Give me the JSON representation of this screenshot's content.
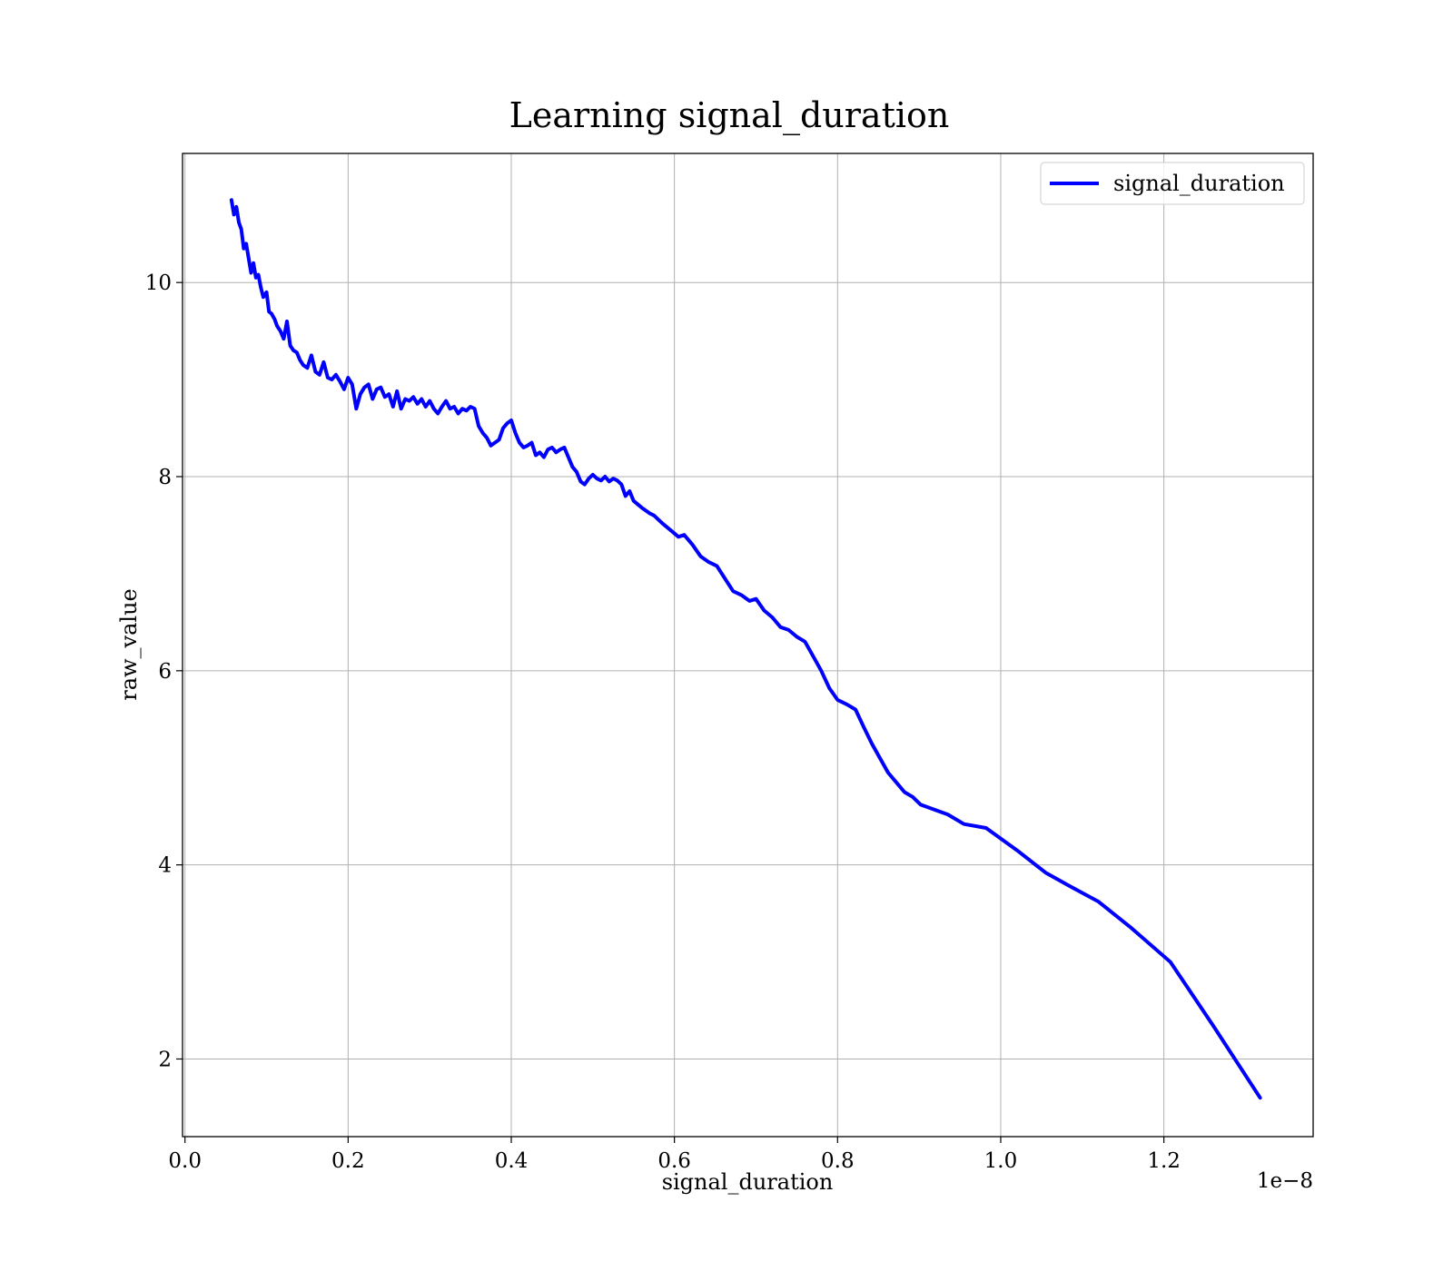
{
  "chart_data": {
    "type": "line",
    "title": "Learning signal_duration",
    "xlabel": "signal_duration",
    "ylabel": "raw_value",
    "x_offset_label": "1e−8",
    "x_scale_exponent": -8,
    "xlim": [
      -0.003,
      1.383
    ],
    "ylim": [
      1.2,
      11.33
    ],
    "xticks": [
      0.0,
      0.2,
      0.4,
      0.6,
      0.8,
      1.0,
      1.2
    ],
    "xtick_labels": [
      "0.0",
      "0.2",
      "0.4",
      "0.6",
      "0.8",
      "1.0",
      "1.2"
    ],
    "yticks": [
      2,
      4,
      6,
      8,
      10
    ],
    "ytick_labels": [
      "2",
      "4",
      "6",
      "8",
      "10"
    ],
    "grid": true,
    "legend_position": "top-right",
    "series": [
      {
        "name": "signal_duration",
        "color": "#0000ff",
        "x": [
          0.057,
          0.06,
          0.063,
          0.066,
          0.069,
          0.072,
          0.075,
          0.078,
          0.081,
          0.084,
          0.087,
          0.09,
          0.093,
          0.096,
          0.1,
          0.103,
          0.106,
          0.11,
          0.113,
          0.117,
          0.121,
          0.125,
          0.129,
          0.133,
          0.137,
          0.141,
          0.145,
          0.15,
          0.155,
          0.16,
          0.165,
          0.17,
          0.175,
          0.18,
          0.185,
          0.19,
          0.195,
          0.2,
          0.205,
          0.21,
          0.215,
          0.22,
          0.225,
          0.23,
          0.235,
          0.24,
          0.245,
          0.25,
          0.255,
          0.26,
          0.265,
          0.27,
          0.275,
          0.28,
          0.285,
          0.29,
          0.295,
          0.3,
          0.305,
          0.31,
          0.315,
          0.32,
          0.325,
          0.33,
          0.335,
          0.34,
          0.345,
          0.35,
          0.355,
          0.36,
          0.365,
          0.37,
          0.375,
          0.38,
          0.385,
          0.39,
          0.395,
          0.4,
          0.405,
          0.41,
          0.415,
          0.42,
          0.425,
          0.43,
          0.435,
          0.44,
          0.445,
          0.45,
          0.455,
          0.46,
          0.465,
          0.47,
          0.475,
          0.48,
          0.485,
          0.49,
          0.495,
          0.5,
          0.505,
          0.51,
          0.515,
          0.52,
          0.525,
          0.53,
          0.535,
          0.54,
          0.545,
          0.55,
          0.56,
          0.57,
          0.575,
          0.585,
          0.595,
          0.605,
          0.612,
          0.622,
          0.632,
          0.642,
          0.652,
          0.662,
          0.672,
          0.682,
          0.692,
          0.7,
          0.71,
          0.72,
          0.73,
          0.74,
          0.75,
          0.76,
          0.77,
          0.78,
          0.79,
          0.8,
          0.812,
          0.822,
          0.832,
          0.842,
          0.852,
          0.862,
          0.872,
          0.882,
          0.892,
          0.902,
          0.915,
          0.935,
          0.955,
          0.982,
          1.02,
          1.055,
          1.085,
          1.12,
          1.16,
          1.208,
          1.26,
          1.318
        ],
        "y": [
          10.85,
          10.7,
          10.78,
          10.62,
          10.55,
          10.35,
          10.4,
          10.25,
          10.1,
          10.2,
          10.05,
          10.08,
          9.95,
          9.85,
          9.9,
          9.7,
          9.68,
          9.62,
          9.55,
          9.5,
          9.42,
          9.6,
          9.35,
          9.3,
          9.28,
          9.2,
          9.15,
          9.12,
          9.25,
          9.08,
          9.05,
          9.18,
          9.02,
          9.0,
          9.05,
          8.98,
          8.9,
          9.02,
          8.95,
          8.7,
          8.85,
          8.92,
          8.95,
          8.8,
          8.9,
          8.92,
          8.82,
          8.85,
          8.72,
          8.88,
          8.7,
          8.8,
          8.78,
          8.82,
          8.75,
          8.8,
          8.72,
          8.78,
          8.7,
          8.65,
          8.72,
          8.78,
          8.7,
          8.72,
          8.65,
          8.7,
          8.68,
          8.72,
          8.7,
          8.52,
          8.45,
          8.4,
          8.32,
          8.35,
          8.38,
          8.5,
          8.55,
          8.58,
          8.45,
          8.35,
          8.3,
          8.32,
          8.35,
          8.22,
          8.25,
          8.2,
          8.28,
          8.3,
          8.25,
          8.28,
          8.3,
          8.2,
          8.1,
          8.05,
          7.95,
          7.92,
          7.98,
          8.02,
          7.98,
          7.96,
          8.0,
          7.95,
          7.98,
          7.96,
          7.92,
          7.8,
          7.85,
          7.75,
          7.68,
          7.62,
          7.6,
          7.52,
          7.45,
          7.38,
          7.4,
          7.3,
          7.18,
          7.12,
          7.08,
          6.95,
          6.82,
          6.78,
          6.72,
          6.74,
          6.62,
          6.55,
          6.45,
          6.42,
          6.35,
          6.3,
          6.15,
          6.0,
          5.82,
          5.7,
          5.65,
          5.6,
          5.42,
          5.25,
          5.1,
          4.95,
          4.85,
          4.75,
          4.7,
          4.62,
          4.58,
          4.52,
          4.42,
          4.38,
          4.15,
          3.92,
          3.78,
          3.62,
          3.35,
          3.0,
          2.35,
          1.6
        ]
      }
    ]
  }
}
